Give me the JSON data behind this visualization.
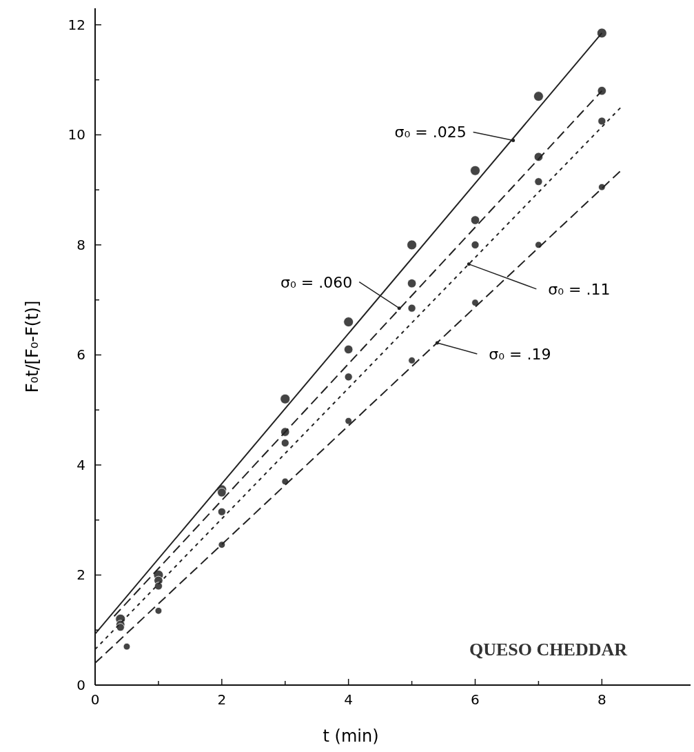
{
  "chart_data": {
    "type": "scatter",
    "xlabel": "t (min)",
    "ylabel": "F₀t/[F₀-F(t)]",
    "xlim": [
      0,
      9.4
    ],
    "ylim": [
      0,
      12.3
    ],
    "xticks": [
      0,
      {
        "value": 1,
        "label": null
      },
      2,
      {
        "value": 3,
        "label": null
      },
      4,
      {
        "value": 5,
        "label": null
      },
      6,
      {
        "value": 7,
        "label": null
      },
      8
    ],
    "yticks": [
      0,
      {
        "value": 1,
        "label": null
      },
      2,
      {
        "value": 3,
        "label": null
      },
      4,
      {
        "value": 5,
        "label": null
      },
      6,
      {
        "value": 7,
        "label": null
      },
      8,
      {
        "value": 9,
        "label": null
      },
      10,
      {
        "value": 11,
        "label": null
      },
      12
    ],
    "grid": false,
    "marker": "circle",
    "series": [
      {
        "color": "#444444",
        "x": [
          0.4,
          1,
          2,
          3,
          4,
          5,
          6,
          7,
          8
        ],
        "values": [
          1.2,
          2.0,
          3.55,
          5.2,
          6.6,
          8.0,
          9.35,
          10.7,
          11.85
        ]
      },
      {
        "color": "#444444",
        "x": [
          0.4,
          1,
          2,
          3,
          4,
          5,
          6,
          7,
          8
        ],
        "values": [
          1.1,
          1.9,
          3.5,
          4.6,
          6.1,
          7.3,
          8.45,
          9.6,
          10.8
        ]
      },
      {
        "color": "#444444",
        "x": [
          0.4,
          1,
          2,
          3,
          4,
          5,
          6,
          7,
          8
        ],
        "values": [
          1.05,
          1.8,
          3.15,
          4.4,
          5.6,
          6.85,
          8.0,
          9.15,
          10.25
        ]
      },
      {
        "color": "#444444",
        "x": [
          0.5,
          1,
          2,
          3,
          4,
          5,
          6,
          7,
          8
        ],
        "values": [
          0.7,
          1.35,
          2.55,
          3.7,
          4.8,
          5.9,
          6.95,
          8.0,
          9.05
        ]
      },
      {
        "type": "line",
        "color": "#222222",
        "line_style": "solid",
        "marker": "none",
        "x": [
          0,
          8
        ],
        "values": [
          0.93,
          11.85
        ]
      },
      {
        "type": "line",
        "color": "#222222",
        "line_style": "dashed",
        "marker": "none",
        "x": [
          0.3,
          8
        ],
        "values": [
          1.25,
          10.8
        ]
      },
      {
        "type": "line",
        "color": "#222222",
        "line_style": "dotted",
        "marker": "none",
        "x": [
          0,
          8.3
        ],
        "values": [
          0.65,
          10.5
        ]
      },
      {
        "type": "line",
        "color": "#222222",
        "line_style": "dashed",
        "marker": "none",
        "x": [
          0,
          8.3
        ],
        "values": [
          0.4,
          9.35
        ]
      }
    ],
    "annotations": [
      {
        "text": "σ₀ = .025",
        "x": 6.6,
        "y": 9.9
      },
      {
        "text": "σ₀ = .060",
        "x": 4.8,
        "y": 6.85
      },
      {
        "text": "σ₀ = .11",
        "x": 5.9,
        "y": 7.65
      },
      {
        "text": "σ₀ = .19",
        "x": 5.4,
        "y": 6.22
      },
      "QUESO CHEDDAR"
    ]
  }
}
